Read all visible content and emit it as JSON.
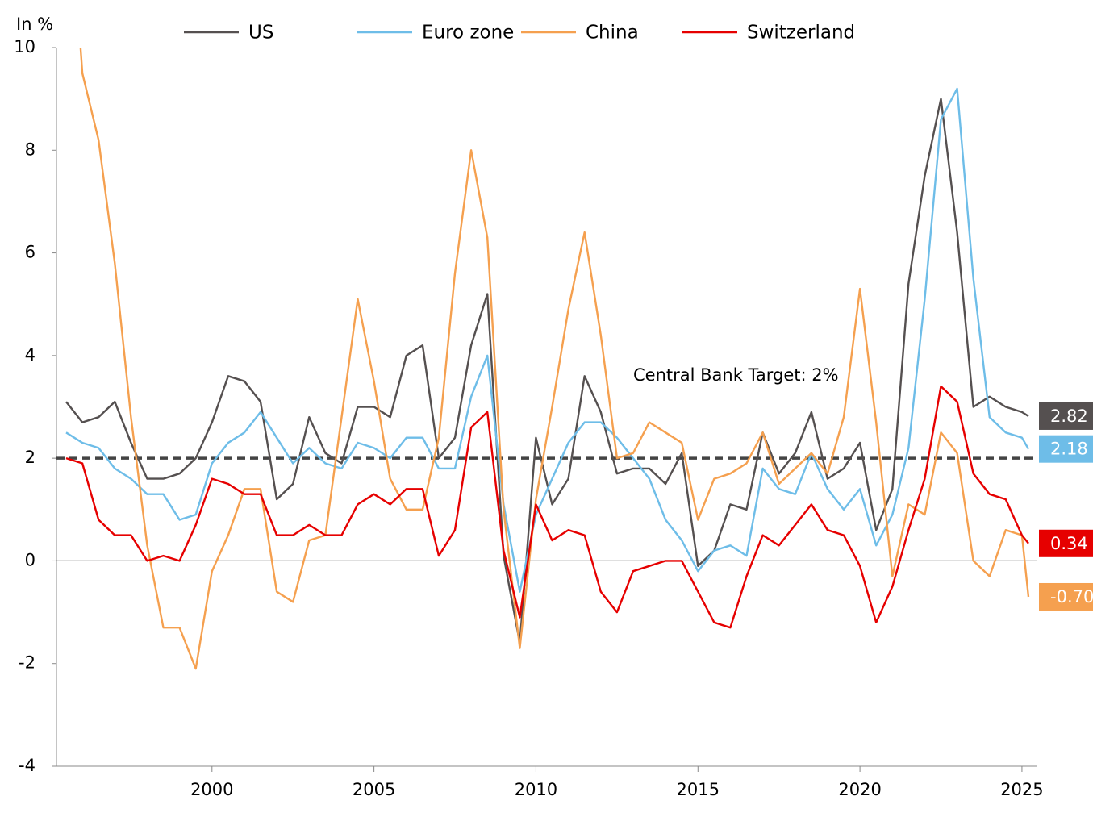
{
  "chart_data": {
    "type": "line",
    "y_label": "In %",
    "annotation": "Central Bank Target: 2%",
    "target": 2,
    "x": [
      1995.5,
      1996.0,
      1996.5,
      1997.0,
      1997.5,
      1998.0,
      1998.5,
      1999.0,
      1999.5,
      2000.0,
      2000.5,
      2001.0,
      2001.5,
      2002.0,
      2002.5,
      2003.0,
      2003.5,
      2004.0,
      2004.5,
      2005.0,
      2005.5,
      2006.0,
      2006.5,
      2007.0,
      2007.5,
      2008.0,
      2008.5,
      2009.0,
      2009.5,
      2010.0,
      2010.5,
      2011.0,
      2011.5,
      2012.0,
      2012.5,
      2013.0,
      2013.5,
      2014.0,
      2014.5,
      2015.0,
      2015.5,
      2016.0,
      2016.5,
      2017.0,
      2017.5,
      2018.0,
      2018.5,
      2019.0,
      2019.5,
      2020.0,
      2020.5,
      2021.0,
      2021.5,
      2022.0,
      2022.5,
      2023.0,
      2023.5,
      2024.0,
      2024.5,
      2025.0,
      2025.2
    ],
    "series": [
      {
        "name": "US",
        "color": "#555050",
        "last_label": "2.82",
        "values": [
          3.1,
          2.7,
          2.8,
          3.1,
          2.3,
          1.6,
          1.6,
          1.7,
          2.0,
          2.7,
          3.6,
          3.5,
          3.1,
          1.2,
          1.5,
          2.8,
          2.1,
          1.9,
          3.0,
          3.0,
          2.8,
          4.0,
          4.2,
          2.0,
          2.4,
          4.2,
          5.2,
          0.1,
          -1.6,
          2.4,
          1.1,
          1.6,
          3.6,
          2.9,
          1.7,
          1.8,
          1.8,
          1.5,
          2.1,
          -0.1,
          0.2,
          1.1,
          1.0,
          2.5,
          1.7,
          2.1,
          2.9,
          1.6,
          1.8,
          2.3,
          0.6,
          1.4,
          5.4,
          7.5,
          9.0,
          6.4,
          3.0,
          3.2,
          3.0,
          2.9,
          2.82
        ]
      },
      {
        "name": "Euro zone",
        "color": "#6ebde8",
        "last_label": "2.18",
        "values": [
          2.5,
          2.3,
          2.2,
          1.8,
          1.6,
          1.3,
          1.3,
          0.8,
          0.9,
          1.9,
          2.3,
          2.5,
          2.9,
          2.4,
          1.9,
          2.2,
          1.9,
          1.8,
          2.3,
          2.2,
          2.0,
          2.4,
          2.4,
          1.8,
          1.8,
          3.2,
          4.0,
          1.1,
          -0.6,
          0.9,
          1.6,
          2.3,
          2.7,
          2.7,
          2.4,
          2.0,
          1.6,
          0.8,
          0.4,
          -0.2,
          0.2,
          0.3,
          0.1,
          1.8,
          1.4,
          1.3,
          2.1,
          1.4,
          1.0,
          1.4,
          0.3,
          0.9,
          2.2,
          5.1,
          8.6,
          9.2,
          5.5,
          2.8,
          2.5,
          2.4,
          2.18
        ]
      },
      {
        "name": "China",
        "color": "#f5a04f",
        "last_label": "-0.70",
        "values": [
          14,
          9.5,
          8.2,
          5.8,
          2.8,
          0.3,
          -1.3,
          -1.3,
          -2.1,
          -0.2,
          0.5,
          1.4,
          1.4,
          -0.6,
          -0.8,
          0.4,
          0.5,
          2.8,
          5.1,
          3.5,
          1.6,
          1.0,
          1.0,
          2.4,
          5.6,
          8.0,
          6.3,
          1.0,
          -1.7,
          1.2,
          3.0,
          4.9,
          6.4,
          4.4,
          2.0,
          2.1,
          2.7,
          2.5,
          2.3,
          0.8,
          1.6,
          1.7,
          1.9,
          2.5,
          1.5,
          1.8,
          2.1,
          1.7,
          2.8,
          5.3,
          2.7,
          -0.3,
          1.1,
          0.9,
          2.5,
          2.1,
          0.0,
          -0.3,
          0.6,
          0.5,
          -0.7
        ]
      },
      {
        "name": "Switzerland",
        "color": "#e60000",
        "last_label": "0.34",
        "values": [
          2.0,
          1.9,
          0.8,
          0.5,
          0.5,
          0.0,
          0.1,
          0.0,
          0.7,
          1.6,
          1.5,
          1.3,
          1.3,
          0.5,
          0.5,
          0.7,
          0.5,
          0.5,
          1.1,
          1.3,
          1.1,
          1.4,
          1.4,
          0.1,
          0.6,
          2.6,
          2.9,
          0.2,
          -1.1,
          1.1,
          0.4,
          0.6,
          0.5,
          -0.6,
          -1.0,
          -0.2,
          -0.1,
          0.0,
          0.0,
          -0.6,
          -1.2,
          -1.3,
          -0.3,
          0.5,
          0.3,
          0.7,
          1.1,
          0.6,
          0.5,
          -0.1,
          -1.2,
          -0.5,
          0.6,
          1.6,
          3.4,
          3.1,
          1.7,
          1.3,
          1.2,
          0.5,
          0.34
        ]
      }
    ],
    "xlim": [
      1995.2,
      2025.45
    ],
    "ylim": [
      -4,
      10
    ],
    "xticks": [
      2000,
      2005,
      2010,
      2015,
      2020,
      2025
    ],
    "yticks": [
      -4,
      -2,
      0,
      2,
      4,
      6,
      8,
      10
    ]
  }
}
